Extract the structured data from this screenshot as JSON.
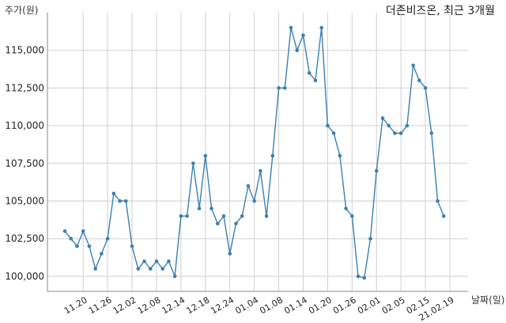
{
  "chart_data": {
    "type": "line",
    "title": "더존비즈온, 최근 3개월",
    "ylabel": "주가(원)",
    "xlabel": "날짜(일)",
    "ylim": [
      99000,
      117500
    ],
    "yticks": [
      100000,
      102500,
      105000,
      107500,
      110000,
      112500,
      115000
    ],
    "ytick_labels": [
      "100,000",
      "102,500",
      "105,000",
      "107,500",
      "110,000",
      "112,500",
      "115,000"
    ],
    "xticks": [
      {
        "index": 3,
        "label": "11.20"
      },
      {
        "index": 7,
        "label": "11.26"
      },
      {
        "index": 11,
        "label": "12.02"
      },
      {
        "index": 15,
        "label": "12.08"
      },
      {
        "index": 19,
        "label": "12.14"
      },
      {
        "index": 23,
        "label": "12.18"
      },
      {
        "index": 27,
        "label": "12.24"
      },
      {
        "index": 31,
        "label": "01.04"
      },
      {
        "index": 35,
        "label": "01.08"
      },
      {
        "index": 39,
        "label": "01.14"
      },
      {
        "index": 43,
        "label": "01.20"
      },
      {
        "index": 47,
        "label": "01.26"
      },
      {
        "index": 51,
        "label": "02.01"
      },
      {
        "index": 55,
        "label": "02.05"
      },
      {
        "index": 59,
        "label": "02.15"
      },
      {
        "index": 63,
        "label": "21.02.19"
      }
    ],
    "grid": true,
    "color": "#3b7fb0",
    "values": [
      103000,
      102500,
      102000,
      103000,
      102000,
      100500,
      101500,
      102500,
      105500,
      105000,
      105000,
      102000,
      100500,
      101000,
      100500,
      101000,
      100500,
      101000,
      100000,
      104000,
      104000,
      107500,
      104500,
      108000,
      104500,
      103500,
      104000,
      101500,
      103500,
      104000,
      106000,
      105000,
      107000,
      104000,
      108000,
      112500,
      112500,
      116500,
      115000,
      116000,
      113500,
      113000,
      116500,
      110000,
      109500,
      108000,
      104500,
      104000,
      100000,
      99900,
      102500,
      107000,
      110500,
      110000,
      109500,
      109500,
      110000,
      114000,
      113000,
      112500,
      109500,
      105000,
      104000
    ]
  }
}
